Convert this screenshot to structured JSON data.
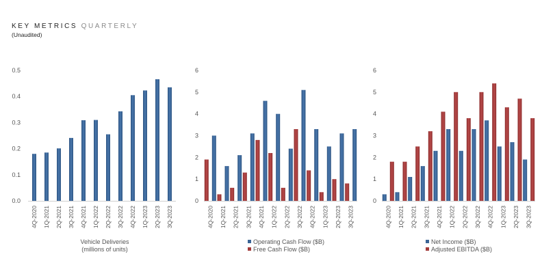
{
  "header": {
    "title_bold": "KEY METRICS",
    "title_light": "QUARTERLY",
    "subtitle": "(Unaudited)"
  },
  "colors": {
    "blue": "#3a6496",
    "red": "#a33a3a",
    "axis": "#d0d0d0",
    "text": "#555555"
  },
  "chart_data": [
    {
      "type": "bar",
      "categories": [
        "4Q-2020",
        "1Q-2021",
        "2Q-2021",
        "3Q-2021",
        "4Q-2021",
        "1Q-2022",
        "2Q-2022",
        "3Q-2022",
        "4Q-2022",
        "1Q-2023",
        "2Q-2023",
        "3Q-2023"
      ],
      "series": [
        {
          "name": "Vehicle Deliveries",
          "color": "blue",
          "values": [
            0.18,
            0.185,
            0.201,
            0.241,
            0.309,
            0.31,
            0.255,
            0.343,
            0.405,
            0.423,
            0.466,
            0.435
          ]
        }
      ],
      "yticks": [
        "0.0",
        "0.1",
        "0.2",
        "0.3",
        "0.4",
        "0.5"
      ],
      "ylim": [
        0,
        0.5
      ],
      "legend": [],
      "xlabel_lines": [
        "Vehicle Deliveries",
        "(millions of units)"
      ]
    },
    {
      "type": "bar",
      "categories": [
        "4Q-2020",
        "1Q-2021",
        "2Q-2021",
        "3Q-2021",
        "4Q-2021",
        "1Q-2022",
        "2Q-2022",
        "3Q-2022",
        "4Q-2022",
        "1Q-2023",
        "2Q-2023",
        "3Q-2023"
      ],
      "series": [
        {
          "name": "Free Cash Flow ($B)",
          "color": "red",
          "values": [
            1.9,
            0.3,
            0.6,
            1.3,
            2.8,
            2.2,
            0.6,
            3.3,
            1.4,
            0.4,
            1.0,
            0.8
          ]
        },
        {
          "name": "Operating Cash Flow ($B)",
          "color": "blue",
          "values": [
            3.0,
            1.6,
            2.1,
            3.1,
            4.6,
            4.0,
            2.4,
            5.1,
            3.3,
            2.5,
            3.1,
            3.3
          ]
        }
      ],
      "yticks": [
        "0",
        "1",
        "2",
        "3",
        "4",
        "5",
        "6"
      ],
      "ylim": [
        0,
        6
      ],
      "legend": [
        {
          "label": "Operating Cash Flow ($B)",
          "color": "blue"
        },
        {
          "label": "Free Cash Flow ($B)",
          "color": "red"
        }
      ],
      "xlabel_lines": []
    },
    {
      "type": "bar",
      "categories": [
        "4Q-2020",
        "1Q-2021",
        "2Q-2021",
        "3Q-2021",
        "4Q-2021",
        "1Q-2022",
        "2Q-2022",
        "3Q-2022",
        "4Q-2022",
        "1Q-2023",
        "2Q-2023",
        "3Q-2023"
      ],
      "series": [
        {
          "name": "Net Income ($B)",
          "color": "blue",
          "values": [
            0.3,
            0.4,
            1.1,
            1.6,
            2.3,
            3.3,
            2.3,
            3.3,
            3.7,
            2.5,
            2.7,
            1.9
          ]
        },
        {
          "name": "Adjusted EBITDA ($B)",
          "color": "red",
          "values": [
            1.8,
            1.8,
            2.5,
            3.2,
            4.1,
            5.0,
            3.8,
            5.0,
            5.4,
            4.3,
            4.7,
            3.8
          ]
        }
      ],
      "yticks": [
        "0",
        "1",
        "2",
        "3",
        "4",
        "5",
        "6"
      ],
      "ylim": [
        0,
        6
      ],
      "legend": [
        {
          "label": "Net Income ($B)",
          "color": "blue"
        },
        {
          "label": "Adjusted EBITDA ($B)",
          "color": "red"
        }
      ],
      "xlabel_lines": []
    }
  ]
}
